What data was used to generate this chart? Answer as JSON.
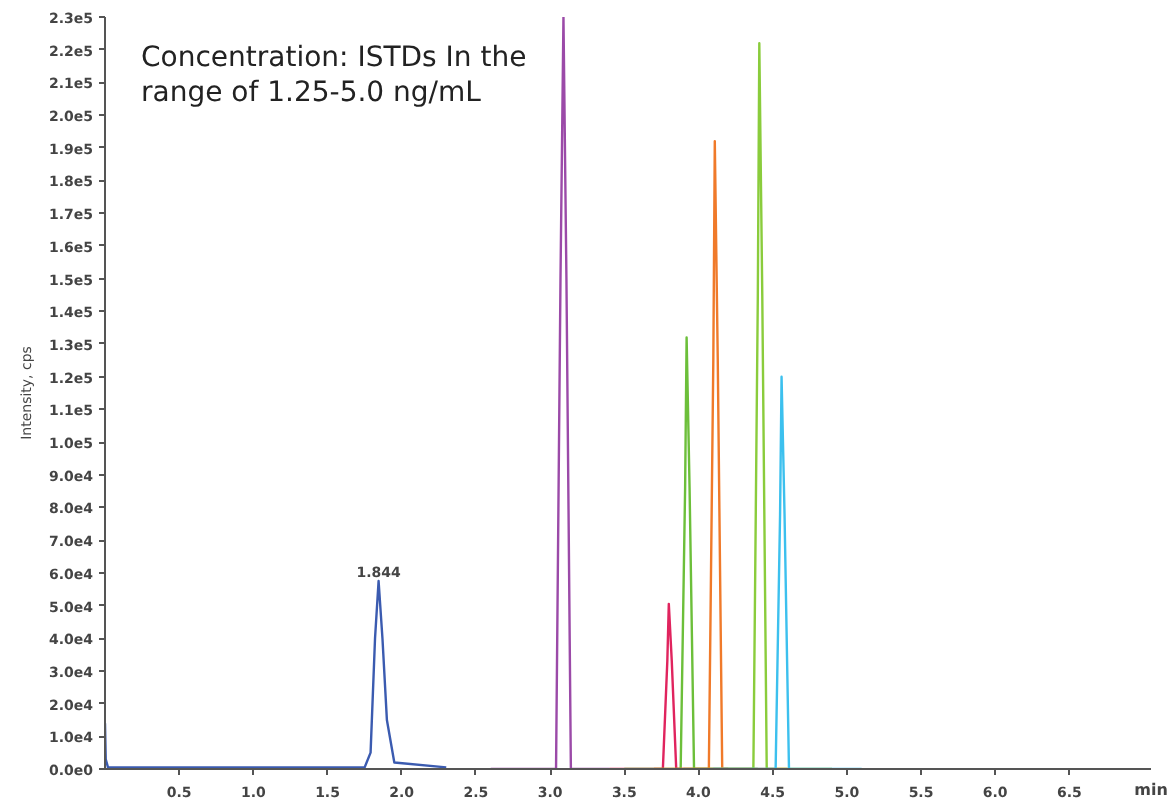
{
  "chart_data": {
    "type": "line",
    "title": "Concentration: ISTDs In the range of 1.25-5.0 ng/mL",
    "xlabel": "min",
    "ylabel": "Intensity, cps",
    "xlim": [
      0,
      7.05
    ],
    "xticks": [
      0.5,
      {
        "value": 1,
        "label": "1.0"
      },
      1.5,
      {
        "value": 2,
        "label": "2.0"
      },
      2.5,
      {
        "value": 3,
        "label": "3.0"
      },
      3.5,
      {
        "value": 4,
        "label": "4.0"
      },
      4.5,
      {
        "value": 5,
        "label": "5.0"
      },
      5.5,
      {
        "value": 6,
        "label": "6.0"
      },
      6.5
    ],
    "ylim": [
      0,
      230000
    ],
    "yticks": [
      {
        "value": 0,
        "label": "0.0e0"
      },
      {
        "value": 10000,
        "label": "1.0e4"
      },
      {
        "value": 20000,
        "label": "2.0e4"
      },
      {
        "value": 30000,
        "label": "3.0e4"
      },
      {
        "value": 40000,
        "label": "4.0e4"
      },
      {
        "value": 50000,
        "label": "5.0e4"
      },
      {
        "value": 60000,
        "label": "6.0e4"
      },
      {
        "value": 70000,
        "label": "7.0e4"
      },
      {
        "value": 80000,
        "label": "8.0e4"
      },
      {
        "value": 90000,
        "label": "9.0e4"
      },
      {
        "value": 100000,
        "label": "1.0e5"
      },
      {
        "value": 110000,
        "label": "1.1e5"
      },
      {
        "value": 120000,
        "label": "1.2e5"
      },
      {
        "value": 130000,
        "label": "1.3e5"
      },
      {
        "value": 140000,
        "label": "1.4e5"
      },
      {
        "value": 150000,
        "label": "1.5e5"
      },
      {
        "value": 160000,
        "label": "1.6e5"
      },
      {
        "value": 170000,
        "label": "1.7e5"
      },
      {
        "value": 180000,
        "label": "1.8e5"
      },
      {
        "value": 190000,
        "label": "1.9e5"
      },
      {
        "value": 200000,
        "label": "2.0e5"
      },
      {
        "value": 210000,
        "label": "2.1e5"
      },
      {
        "value": 220000,
        "label": "2.2e5"
      },
      {
        "value": 230000,
        "label": "2.3e5"
      }
    ],
    "grid": false,
    "annotations": [
      {
        "text": "1.844",
        "x": 1.844,
        "y": 57500
      }
    ],
    "series": [
      {
        "color": "#3b5bb0",
        "x": [
          0,
          0.005,
          0.02,
          1.75,
          1.79,
          1.82,
          1.844,
          1.87,
          1.9,
          1.95,
          2.3
        ],
        "values": [
          14000,
          3000,
          500,
          500,
          5000,
          40000,
          57500,
          40000,
          15000,
          2000,
          500
        ]
      },
      {
        "color": "#9b4aa8",
        "x": [
          2.6,
          3.04,
          3.07,
          3.09,
          3.11,
          3.14,
          3.4
        ],
        "values": [
          0,
          0,
          150000,
          230000,
          150000,
          0,
          0
        ]
      },
      {
        "color": "#e0245e",
        "x": [
          3.4,
          3.76,
          3.79,
          3.8,
          3.82,
          3.85,
          4.2
        ],
        "values": [
          0,
          0,
          33000,
          50500,
          33000,
          0,
          0
        ]
      },
      {
        "color": "#6cbf3a",
        "x": [
          3.5,
          3.88,
          3.91,
          3.92,
          3.94,
          3.97,
          4.4
        ],
        "values": [
          0,
          0,
          86000,
          132000,
          86000,
          0,
          0
        ]
      },
      {
        "color": "#f07a2a",
        "x": [
          3.7,
          4.07,
          4.1,
          4.11,
          4.13,
          4.16,
          4.6
        ],
        "values": [
          0,
          0,
          125000,
          192000,
          125000,
          0,
          0
        ]
      },
      {
        "color": "#8acc3c",
        "x": [
          3.9,
          4.37,
          4.4,
          4.41,
          4.43,
          4.46,
          4.9
        ],
        "values": [
          0,
          0,
          145000,
          222000,
          145000,
          0,
          0
        ]
      },
      {
        "color": "#3cc0ee",
        "x": [
          4.1,
          4.52,
          4.55,
          4.56,
          4.58,
          4.61,
          5.1
        ],
        "values": [
          0,
          0,
          78000,
          120000,
          78000,
          0,
          0
        ]
      }
    ]
  }
}
